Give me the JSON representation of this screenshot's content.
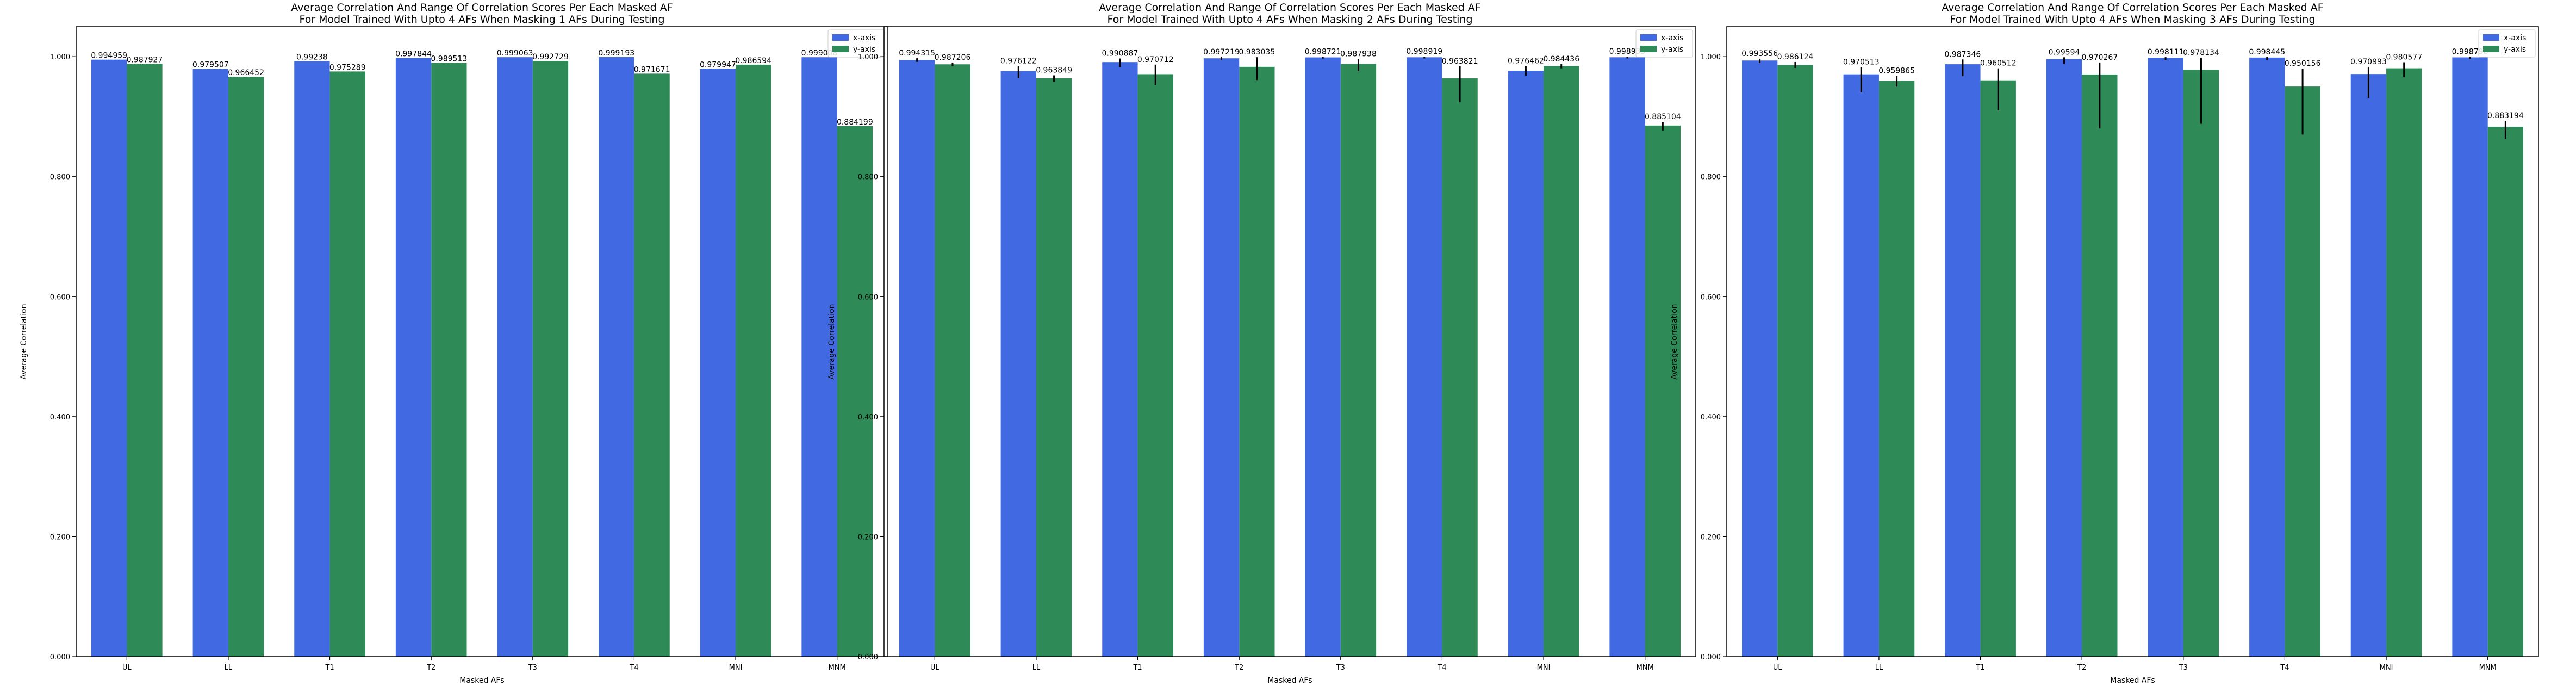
{
  "chart_data": [
    {
      "type": "bar",
      "title": "Average Correlation And Range Of Correlation Scores Per Each Masked AF",
      "subtitle": "For Model Trained With Upto 4 AFs When Masking 1 AFs During Testing",
      "xlabel": "Masked AFs",
      "ylabel": "Average Correlation",
      "ylim": [
        0,
        1.05
      ],
      "yticks": [
        "0.000",
        "0.200",
        "0.400",
        "0.600",
        "0.800",
        "1.000"
      ],
      "categories": [
        "UL",
        "LL",
        "T1",
        "T2",
        "T3",
        "T4",
        "MNI",
        "MNM"
      ],
      "legend_position": "top-right",
      "series": [
        {
          "name": "x-axis",
          "color": "#4169e1",
          "values": [
            0.994959,
            0.979507,
            0.99238,
            0.997844,
            0.999063,
            0.999193,
            0.979947,
            0.999008
          ],
          "labels": [
            "0.994959",
            "0.979507",
            "0.99238",
            "0.997844",
            "0.999063",
            "0.999193",
            "0.979947",
            "0.999008"
          ],
          "err_low": [
            0,
            0,
            0,
            0,
            0,
            0,
            0,
            0
          ],
          "err_high": [
            0,
            0,
            0,
            0,
            0,
            0,
            0,
            0
          ]
        },
        {
          "name": "y-axis",
          "color": "#2e8b57",
          "values": [
            0.987927,
            0.966452,
            0.975289,
            0.989513,
            0.992729,
            0.971671,
            0.986594,
            0.884199
          ],
          "labels": [
            "0.987927",
            "0.966452",
            "0.975289",
            "0.989513",
            "0.992729",
            "0.971671",
            "0.986594",
            "0.884199"
          ],
          "err_low": [
            0,
            0,
            0,
            0,
            0,
            0,
            0,
            0
          ],
          "err_high": [
            0,
            0,
            0,
            0,
            0,
            0,
            0,
            0
          ]
        }
      ]
    },
    {
      "type": "bar",
      "title": "Average Correlation And Range Of Correlation Scores Per Each Masked AF",
      "subtitle": "For Model Trained With Upto 4 AFs When Masking 2 AFs During Testing",
      "xlabel": "Masked AFs",
      "ylabel": "Average Correlation",
      "ylim": [
        0,
        1.05
      ],
      "yticks": [
        "0.000",
        "0.200",
        "0.400",
        "0.600",
        "0.800",
        "1.000"
      ],
      "categories": [
        "UL",
        "LL",
        "T1",
        "T2",
        "T3",
        "T4",
        "MNI",
        "MNM"
      ],
      "legend_position": "top-right",
      "series": [
        {
          "name": "x-axis",
          "color": "#4169e1",
          "values": [
            0.994315,
            0.976122,
            0.990887,
            0.997219,
            0.998721,
            0.998919,
            0.976462,
            0.998935
          ],
          "labels": [
            "0.994315",
            "0.976122",
            "0.990887",
            "0.997219",
            "0.998721",
            "0.998919",
            "0.976462",
            "0.998935"
          ],
          "err_low": [
            0.003,
            0.012,
            0.008,
            0.003,
            0.002,
            0.002,
            0.008,
            0.002
          ],
          "err_high": [
            0.003,
            0.008,
            0.006,
            0.002,
            0.001,
            0.001,
            0.008,
            0.001
          ]
        },
        {
          "name": "y-axis",
          "color": "#2e8b57",
          "values": [
            0.987206,
            0.963849,
            0.970712,
            0.983035,
            0.987938,
            0.963821,
            0.984436,
            0.885104
          ],
          "labels": [
            "0.987206",
            "0.963849",
            "0.970712",
            "0.983035",
            "0.987938",
            "0.963821",
            "0.984436",
            "0.885104"
          ],
          "err_low": [
            0.003,
            0.006,
            0.018,
            0.022,
            0.012,
            0.04,
            0.004,
            0.008
          ],
          "err_high": [
            0.003,
            0.005,
            0.016,
            0.016,
            0.008,
            0.02,
            0.003,
            0.006
          ]
        }
      ]
    },
    {
      "type": "bar",
      "title": "Average Correlation And Range Of Correlation Scores Per Each Masked AF",
      "subtitle": "For Model Trained With Upto 4 AFs When Masking 3 AFs During Testing",
      "xlabel": "Masked AFs",
      "ylabel": "Average Correlation",
      "ylim": [
        0,
        1.05
      ],
      "yticks": [
        "0.000",
        "0.200",
        "0.400",
        "0.600",
        "0.800",
        "1.000"
      ],
      "categories": [
        "UL",
        "LL",
        "T1",
        "T2",
        "T3",
        "T4",
        "MNI",
        "MNM"
      ],
      "legend_position": "top-right",
      "series": [
        {
          "name": "x-axis",
          "color": "#4169e1",
          "values": [
            0.993556,
            0.970513,
            0.987346,
            0.99594,
            0.998111,
            0.998445,
            0.970993,
            0.998796
          ],
          "labels": [
            "0.993556",
            "0.970513",
            "0.987346",
            "0.99594",
            "0.998111",
            "0.998445",
            "0.970993",
            "0.998796"
          ],
          "err_low": [
            0.004,
            0.03,
            0.02,
            0.008,
            0.004,
            0.004,
            0.04,
            0.003
          ],
          "err_high": [
            0.003,
            0.012,
            0.008,
            0.003,
            0.001,
            0.001,
            0.012,
            0.001
          ]
        },
        {
          "name": "y-axis",
          "color": "#2e8b57",
          "values": [
            0.986124,
            0.959865,
            0.960512,
            0.970267,
            0.978134,
            0.950156,
            0.980577,
            0.883194
          ],
          "labels": [
            "0.986124",
            "0.959865",
            "0.960512",
            "0.970267",
            "0.978134",
            "0.950156",
            "0.980577",
            "0.883194"
          ],
          "err_low": [
            0.005,
            0.01,
            0.05,
            0.09,
            0.09,
            0.08,
            0.015,
            0.02
          ],
          "err_high": [
            0.005,
            0.008,
            0.02,
            0.02,
            0.02,
            0.03,
            0.01,
            0.01
          ]
        }
      ]
    }
  ]
}
